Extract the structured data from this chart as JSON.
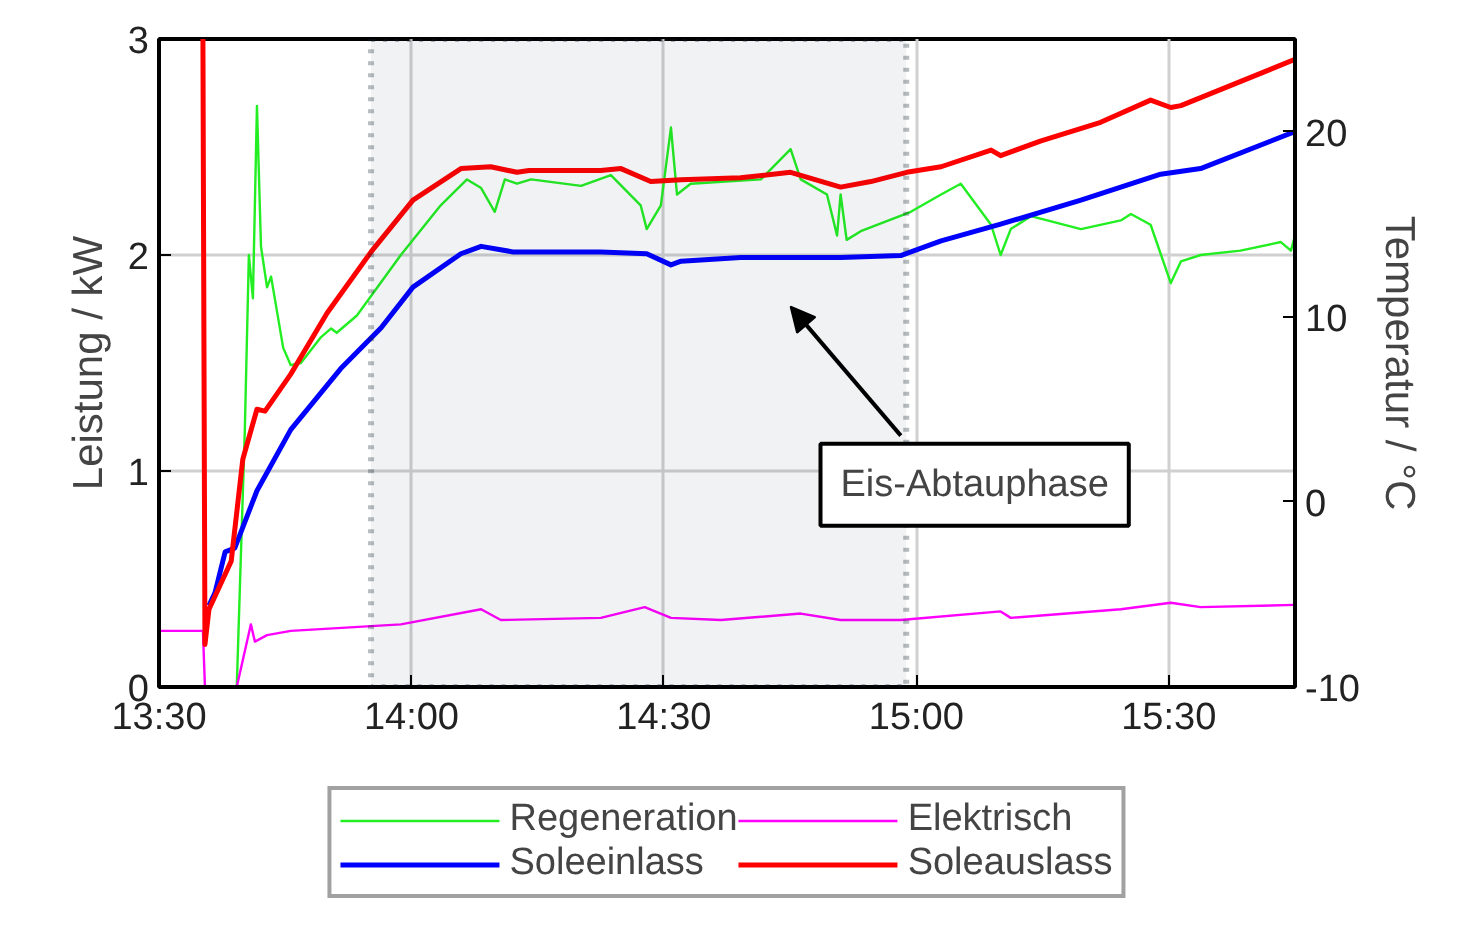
{
  "chart_data": {
    "type": "line",
    "ylabel": "Leistung / kW",
    "y2label": "Temperatur / °C",
    "xlim": [
      13.5,
      15.75
    ],
    "ylim": [
      0,
      3
    ],
    "y2lim": [
      -10,
      25
    ],
    "xticks": [
      {
        "value": 13.5,
        "label": "13:30"
      },
      {
        "value": 14,
        "label": "14:00"
      },
      {
        "value": 14.5,
        "label": "14:30"
      },
      {
        "value": 15,
        "label": "15:00"
      },
      {
        "value": 15.5,
        "label": "15:30"
      }
    ],
    "yticks": [
      0,
      1,
      2,
      3
    ],
    "y2ticks": [
      -10,
      0,
      10,
      20
    ],
    "grid": true,
    "legend": "bottom",
    "bands": [
      {
        "axis": "x",
        "from": 13.92,
        "to": 14.98,
        "color": "#102030"
      }
    ],
    "annotations": [
      "Eis-Abtauphase"
    ],
    "series": [
      {
        "name": "Regeneration",
        "color": "#22ee22",
        "axis": "y",
        "x": [
          13.587,
          13.654,
          13.67,
          13.678,
          13.686,
          13.694,
          13.702,
          13.714,
          13.722,
          13.746,
          13.761,
          13.781,
          13.821,
          13.841,
          13.852,
          13.892,
          13.979,
          14.058,
          14.11,
          14.138,
          14.165,
          14.185,
          14.209,
          14.237,
          14.336,
          14.395,
          14.454,
          14.466,
          14.494,
          14.514,
          14.526,
          14.553,
          14.692,
          14.751,
          14.771,
          14.823,
          14.843,
          14.85,
          14.862,
          14.89,
          14.989,
          15.049,
          15.088,
          15.148,
          15.167,
          15.187,
          15.227,
          15.326,
          15.405,
          15.425,
          15.464,
          15.504,
          15.524,
          15.563,
          15.642,
          15.722,
          15.742,
          15.75
        ],
        "values": [
          0,
          0,
          1.19,
          2.0,
          1.8,
          2.69,
          2.04,
          1.85,
          1.9,
          1.57,
          1.49,
          1.5,
          1.62,
          1.66,
          1.64,
          1.72,
          2.0,
          2.23,
          2.35,
          2.31,
          2.2,
          2.35,
          2.33,
          2.35,
          2.32,
          2.37,
          2.23,
          2.12,
          2.23,
          2.59,
          2.28,
          2.33,
          2.35,
          2.49,
          2.35,
          2.28,
          2.09,
          2.28,
          2.07,
          2.11,
          2.2,
          2.28,
          2.33,
          2.14,
          2.0,
          2.12,
          2.18,
          2.12,
          2.16,
          2.19,
          2.14,
          1.87,
          1.97,
          2.0,
          2.02,
          2.06,
          2.02,
          2.09
        ]
      },
      {
        "name": "Elektrisch",
        "color": "#ff00ff",
        "axis": "y",
        "x": [
          13.5,
          13.587,
          13.591,
          13.654,
          13.682,
          13.69,
          13.714,
          13.761,
          13.979,
          14.138,
          14.177,
          14.375,
          14.462,
          14.514,
          14.613,
          14.771,
          14.85,
          14.969,
          15.167,
          15.187,
          15.405,
          15.504,
          15.563,
          15.75
        ],
        "values": [
          0.26,
          0.26,
          0,
          0,
          0.29,
          0.21,
          0.24,
          0.26,
          0.29,
          0.36,
          0.31,
          0.32,
          0.37,
          0.32,
          0.31,
          0.34,
          0.31,
          0.31,
          0.35,
          0.32,
          0.36,
          0.39,
          0.37,
          0.38
        ]
      },
      {
        "name": "Soleeinlass",
        "color": "#0000ff",
        "axis": "y2",
        "x": [
          13.599,
          13.611,
          13.631,
          13.65,
          13.694,
          13.761,
          13.86,
          13.94,
          14.003,
          14.098,
          14.138,
          14.201,
          14.375,
          14.466,
          14.514,
          14.534,
          14.652,
          14.85,
          14.969,
          15.049,
          15.167,
          15.326,
          15.484,
          15.563,
          15.75
        ],
        "values": [
          -5.6,
          -4.9,
          -2.7,
          -2.5,
          0.6,
          3.9,
          7.2,
          9.4,
          11.6,
          13.4,
          13.8,
          13.5,
          13.5,
          13.4,
          12.8,
          13.0,
          13.2,
          13.2,
          13.3,
          14.1,
          15.0,
          16.3,
          17.7,
          18.0,
          20.0
        ]
      },
      {
        "name": "Soleauslass",
        "color": "#ff0000",
        "axis": "y2",
        "x": [
          13.587,
          13.591,
          13.599,
          13.643,
          13.666,
          13.694,
          13.71,
          13.761,
          13.833,
          13.92,
          14.003,
          14.098,
          14.157,
          14.209,
          14.233,
          14.375,
          14.415,
          14.474,
          14.534,
          14.652,
          14.751,
          14.85,
          14.91,
          14.981,
          15.049,
          15.148,
          15.167,
          15.247,
          15.365,
          15.464,
          15.504,
          15.524,
          15.75
        ],
        "values": [
          25,
          -7.7,
          -5.8,
          -3.2,
          2.3,
          5.0,
          4.9,
          6.9,
          10.2,
          13.5,
          16.3,
          18.0,
          18.1,
          17.8,
          17.9,
          17.9,
          18.0,
          17.3,
          17.4,
          17.5,
          17.8,
          17.0,
          17.3,
          17.8,
          18.1,
          19.0,
          18.7,
          19.5,
          20.5,
          21.7,
          21.3,
          21.4,
          23.9
        ]
      }
    ]
  }
}
